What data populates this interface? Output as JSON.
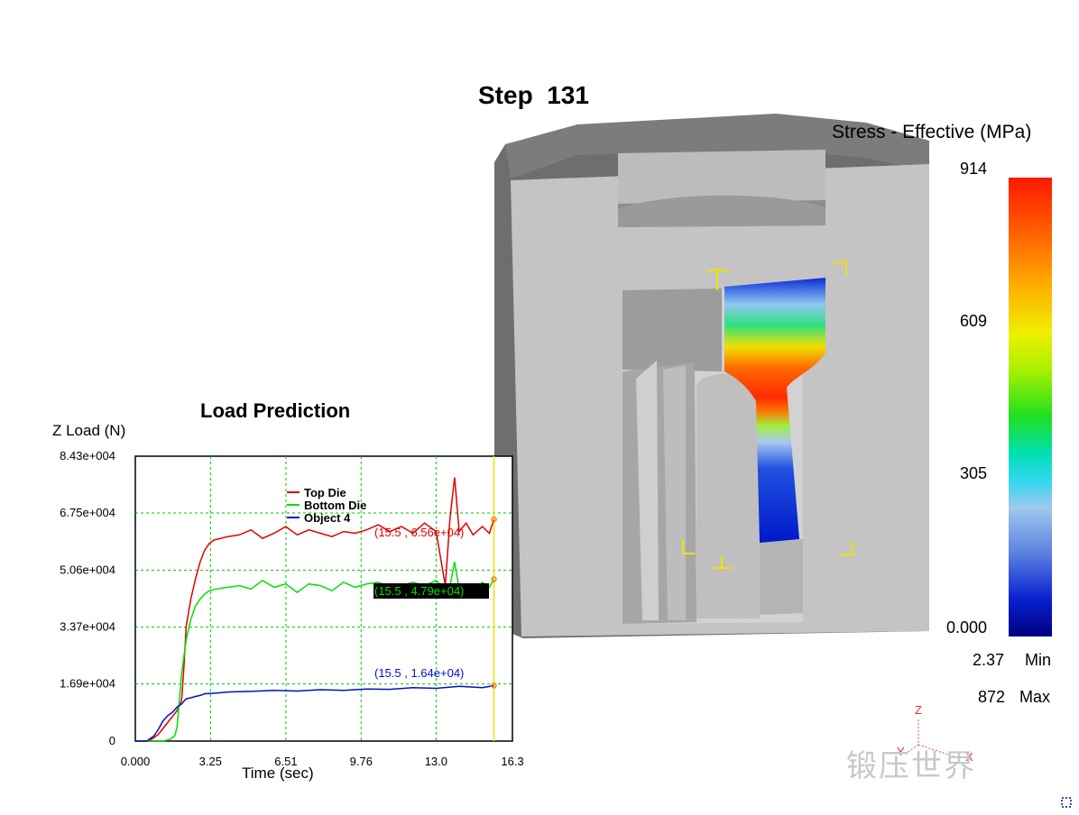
{
  "step_title": "Step  131",
  "legend": {
    "title": "Stress - Effective (MPa)",
    "ticks": [
      "914",
      "609",
      "305",
      "0.000"
    ],
    "min_value": "2.37",
    "min_label": "Min",
    "max_value": "872",
    "max_label": "Max"
  },
  "axes_triad": {
    "z": "Z",
    "y": "Y",
    "x": "X"
  },
  "watermark": "锻压世界",
  "chart_data": {
    "type": "line",
    "title": "Load Prediction",
    "ylabel": "Z Load (N)",
    "xlabel": "Time (sec)",
    "xlim": [
      0,
      16.3
    ],
    "ylim": [
      0,
      84300
    ],
    "x_ticks": [
      "0.000",
      "3.25",
      "6.51",
      "9.76",
      "13.0",
      "16.3"
    ],
    "y_ticks": [
      "0",
      "1.69e+004",
      "3.37e+004",
      "5.06e+004",
      "6.75e+004",
      "8.43e+004"
    ],
    "grid": true,
    "legend_placement": "top-center",
    "cursor_x": 15.5,
    "series": [
      {
        "name": "Top Die",
        "color": "#e00000",
        "x": [
          0,
          0.6,
          1.0,
          1.4,
          1.8,
          2.0,
          2.1,
          2.2,
          2.4,
          2.6,
          2.8,
          3.0,
          3.2,
          3.4,
          3.7,
          4.0,
          4.5,
          5.0,
          5.5,
          6.0,
          6.5,
          7.0,
          7.5,
          8.0,
          8.5,
          9.0,
          9.5,
          10.0,
          10.5,
          11.0,
          11.5,
          12.0,
          12.5,
          13.0,
          13.4,
          13.6,
          13.8,
          14.0,
          14.3,
          14.6,
          15.0,
          15.3,
          15.5
        ],
        "y": [
          0,
          0,
          2000,
          5500,
          9000,
          12000,
          22000,
          34000,
          42000,
          48000,
          53000,
          56500,
          58500,
          59500,
          60000,
          60500,
          61000,
          62500,
          60000,
          61500,
          63500,
          61000,
          62500,
          61500,
          60500,
          62000,
          61500,
          62500,
          64000,
          62000,
          63500,
          61500,
          64500,
          62000,
          46000,
          66000,
          78000,
          62000,
          64500,
          61000,
          63500,
          61500,
          65600
        ],
        "label": "(15.5 , 6.56e+04)"
      },
      {
        "name": "Bottom Die",
        "color": "#00e000",
        "x": [
          0,
          1.2,
          1.5,
          1.7,
          1.8,
          2.0,
          2.2,
          2.4,
          2.6,
          2.8,
          3.0,
          3.2,
          3.5,
          4.0,
          4.5,
          5.0,
          5.5,
          6.0,
          6.5,
          7.0,
          7.5,
          8.0,
          8.5,
          9.0,
          9.5,
          10.0,
          10.5,
          11.0,
          11.5,
          12.0,
          12.5,
          13.0,
          13.4,
          13.6,
          13.8,
          14.0,
          14.4,
          14.8,
          15.0,
          15.3,
          15.5
        ],
        "y": [
          0,
          0,
          500,
          1500,
          4000,
          20000,
          30000,
          36000,
          40000,
          42000,
          43500,
          44500,
          45000,
          45500,
          46000,
          45000,
          47500,
          45500,
          46500,
          44000,
          46500,
          46000,
          44500,
          47000,
          45500,
          46500,
          47000,
          45500,
          46000,
          47000,
          46000,
          47500,
          45000,
          46000,
          53000,
          45000,
          46500,
          45500,
          47000,
          45500,
          47900
        ]
      },
      {
        "name": "Object 4",
        "color": "#0010c8",
        "x": [
          0,
          0.5,
          0.8,
          1.0,
          1.2,
          1.4,
          1.6,
          1.8,
          2.0,
          2.2,
          2.4,
          2.6,
          2.8,
          3.0,
          3.5,
          4.0,
          5.0,
          6.0,
          7.0,
          8.0,
          9.0,
          10.0,
          11.0,
          12.0,
          13.0,
          14.0,
          15.0,
          15.5
        ],
        "y": [
          0,
          0,
          1500,
          3500,
          6000,
          7500,
          8500,
          10000,
          11000,
          12500,
          12800,
          13200,
          13500,
          14000,
          14200,
          14500,
          14700,
          15000,
          14800,
          15200,
          15000,
          15400,
          15300,
          15800,
          15600,
          16200,
          15800,
          16400
        ]
      }
    ],
    "data_labels": [
      {
        "text": "(15.5 , 6.56e+04)",
        "color": "#e00000"
      },
      {
        "text": "(15.5 , 4.79e+04)",
        "color": "#00e000"
      },
      {
        "text": "(15.5 , 1.64e+04)",
        "color": "#0010c8"
      }
    ]
  }
}
